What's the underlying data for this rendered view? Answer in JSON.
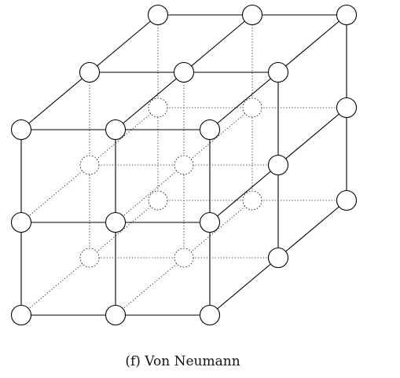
{
  "caption": "(f) Von Neumann",
  "style": {
    "line_color": "#000000",
    "node_fill": "#ffffff"
  },
  "diagram": {
    "lattice_size": [
      3,
      3,
      3
    ],
    "neighborhood": "von-neumann"
  }
}
